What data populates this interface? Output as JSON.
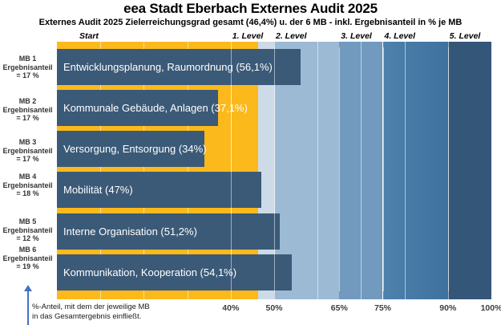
{
  "title": "eea Stadt Eberbach Externes Audit 2025",
  "subtitle": "Externes Audit 2025 Zielerreichungsgrad gesamt (46,4%) u. der 6 MB - inkl. Ergebnisanteil in % je MB",
  "header": {
    "start_label": "Start"
  },
  "chart_data": {
    "type": "bar",
    "orientation": "horizontal",
    "x_unit": "%",
    "xlim": [
      0,
      100
    ],
    "overall_score_pct": 46.4,
    "overall_score_display": "(46,4%)",
    "bars": [
      {
        "mb": "MB 1",
        "share_line1": "Ergebnisanteil",
        "share_line2": "= 17 %",
        "label": "Entwicklungsplanung, Raumordnung (56,1%)",
        "value": 56.1
      },
      {
        "mb": "MB 2",
        "share_line1": "Ergebnisanteil",
        "share_line2": "= 17 %",
        "label": "Kommunale Gebäude, Anlagen (37,1%)",
        "value": 37.1
      },
      {
        "mb": "MB 3",
        "share_line1": "Ergebnisanteil",
        "share_line2": "= 17 %",
        "label": "Versorgung, Entsorgung (34%)",
        "value": 34
      },
      {
        "mb": "MB 4",
        "share_line1": "Ergebnisanteil",
        "share_line2": "= 18 %",
        "label": "Mobilität (47%)",
        "value": 47
      },
      {
        "mb": "MB 5",
        "share_line1": "Ergebnisanteil",
        "share_line2": "= 12 %",
        "label": "Interne Organisation (51,2%)",
        "value": 51.2
      },
      {
        "mb": "MB 6",
        "share_line1": "Ergebnisanteil",
        "share_line2": "= 19 %",
        "label": "Kommunikation, Kooperation (54,1%)",
        "value": 54.1
      }
    ],
    "level_zones": [
      {
        "label": "1. Level",
        "threshold_pct": 40
      },
      {
        "label": "2. Level",
        "threshold_pct": 50
      },
      {
        "label": "3. Level",
        "threshold_pct": 65
      },
      {
        "label": "4. Level",
        "threshold_pct": 75
      },
      {
        "label": "5. Level",
        "threshold_pct": 90
      }
    ],
    "x_tick_labels": [
      "40%",
      "50%",
      "65%",
      "75%",
      "90%",
      "100%"
    ],
    "x_tick_positions": [
      40,
      50,
      65,
      75,
      90,
      100
    ],
    "gridlines_pct": [
      40,
      50,
      65,
      75,
      90
    ],
    "minor_ticks_pct": [
      10,
      20,
      30,
      40,
      50,
      60,
      70,
      80,
      90
    ]
  },
  "footnote": {
    "line1": "%-Anteil, mit dem der jeweilige MB",
    "line2": "in das Gesamtergebnis einfließt."
  },
  "colors": {
    "bar": "#3B5A78",
    "score_overlay": "#FBB91C",
    "zone_bands": [
      {
        "to_pct": 50,
        "color": "#CDDBE8"
      },
      {
        "to_pct": 65,
        "color": "#9DBAD5"
      },
      {
        "to_pct": 75,
        "color": "#7299BE"
      },
      {
        "to_pct": 90,
        "color": "#4F81AD",
        "color2": "#3E719D"
      },
      {
        "to_pct": 100,
        "color": "#345679"
      }
    ],
    "arrow": "#4472C4"
  }
}
